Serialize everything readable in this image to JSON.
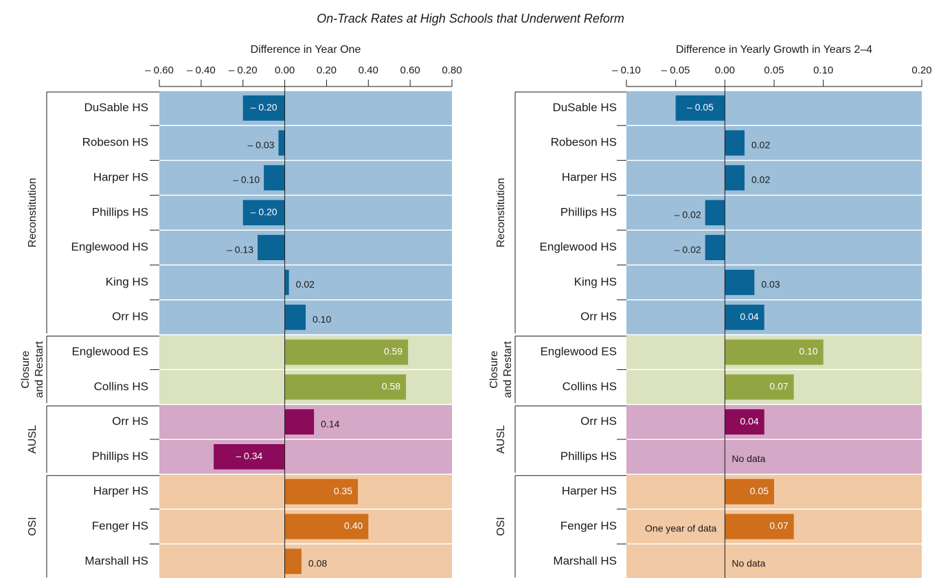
{
  "title": "On-Track Rates at High Schools that Underwent Reform",
  "chart_data": [
    {
      "type": "bar",
      "orientation": "horizontal",
      "title": "Difference in Year One",
      "xlim": [
        -0.6,
        0.8
      ],
      "xticks": [
        {
          "value": -0.6,
          "label": "– 0.60"
        },
        {
          "value": -0.4,
          "label": "– 0.40"
        },
        {
          "value": -0.2,
          "label": "– 0.20"
        },
        {
          "value": 0,
          "label": "0.00"
        },
        {
          "value": 0.2,
          "label": "0.20"
        },
        {
          "value": 0.4,
          "label": "0.40"
        },
        {
          "value": 0.6,
          "label": "0.60"
        },
        {
          "value": 0.8,
          "label": "0.80"
        }
      ],
      "groups": [
        {
          "label": [
            "Reconstitution"
          ],
          "band_color": "#9dbfd9",
          "color": "#0a6496",
          "categories": [
            "DuSable HS",
            "Robeson HS",
            "Harper HS",
            "Phillips HS",
            "Englewood HS",
            "King HS",
            "Orr HS"
          ],
          "values": [
            -0.2,
            -0.03,
            -0.1,
            -0.2,
            -0.13,
            0.02,
            0.1
          ],
          "value_labels": [
            "– 0.20",
            "– 0.03",
            "– 0.10",
            "– 0.20",
            "– 0.13",
            "0.02",
            "0.10"
          ]
        },
        {
          "label": [
            "Closure",
            "and Restart"
          ],
          "band_color": "#dbe2bf",
          "color": "#93a542",
          "categories": [
            "Englewood ES",
            "Collins HS"
          ],
          "values": [
            0.59,
            0.58
          ],
          "value_labels": [
            "0.59",
            "0.58"
          ]
        },
        {
          "label": [
            "AUSL"
          ],
          "band_color": "#d4a8c6",
          "color": "#8c0a5a",
          "categories": [
            "Orr HS",
            "Phillips HS"
          ],
          "values": [
            0.14,
            -0.34
          ],
          "value_labels": [
            "0.14",
            "– 0.34"
          ]
        },
        {
          "label": [
            "OSI"
          ],
          "band_color": "#f1c9a4",
          "color": "#cf6e1b",
          "categories": [
            "Harper HS",
            "Fenger HS",
            "Marshall HS"
          ],
          "values": [
            0.35,
            0.4,
            0.08
          ],
          "value_labels": [
            "0.35",
            "0.40",
            "0.08"
          ]
        }
      ]
    },
    {
      "type": "bar",
      "orientation": "horizontal",
      "title": "Difference in Yearly Growth in Years 2–4",
      "xlim": [
        -0.1,
        0.2
      ],
      "xticks": [
        {
          "value": -0.1,
          "label": "– 0.10"
        },
        {
          "value": -0.05,
          "label": "– 0.05"
        },
        {
          "value": 0,
          "label": "0.00"
        },
        {
          "value": 0.05,
          "label": "0.05"
        },
        {
          "value": 0.1,
          "label": "0.10"
        },
        {
          "value": 0.2,
          "label": "0.20"
        }
      ],
      "groups": [
        {
          "label": [
            "Reconstitution"
          ],
          "band_color": "#9dbfd9",
          "color": "#0a6496",
          "categories": [
            "DuSable HS",
            "Robeson HS",
            "Harper HS",
            "Phillips HS",
            "Englewood HS",
            "King HS",
            "Orr HS"
          ],
          "values": [
            -0.05,
            0.02,
            0.02,
            -0.02,
            -0.02,
            0.03,
            0.04
          ],
          "value_labels": [
            "– 0.05",
            "0.02",
            "0.02",
            "– 0.02",
            "– 0.02",
            "0.03",
            "0.04"
          ]
        },
        {
          "label": [
            "Closure",
            "and Restart"
          ],
          "band_color": "#dbe2bf",
          "color": "#93a542",
          "categories": [
            "Englewood ES",
            "Collins HS"
          ],
          "values": [
            0.1,
            0.07
          ],
          "value_labels": [
            "0.10",
            "0.07"
          ]
        },
        {
          "label": [
            "AUSL"
          ],
          "band_color": "#d4a8c6",
          "color": "#8c0a5a",
          "categories": [
            "Orr HS",
            "Phillips HS"
          ],
          "values": [
            0.04,
            null
          ],
          "value_labels": [
            "0.04",
            "No data"
          ]
        },
        {
          "label": [
            "OSI"
          ],
          "band_color": "#f1c9a4",
          "color": "#cf6e1b",
          "categories": [
            "Harper HS",
            "Fenger HS",
            "Marshall HS"
          ],
          "values": [
            0.05,
            0.07,
            null
          ],
          "value_labels": [
            "0.05",
            "0.07",
            "No data"
          ],
          "notes": [
            null,
            "One year of data",
            null
          ]
        }
      ]
    }
  ]
}
